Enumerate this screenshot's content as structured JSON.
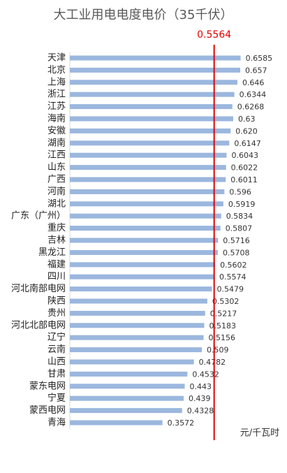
{
  "chart_data": {
    "type": "hbar",
    "title": "大工业用电电度电价（35千伏）",
    "categories": [
      "天津",
      "北京",
      "上海",
      "浙江",
      "江苏",
      "海南",
      "安徽",
      "湖南",
      "江西",
      "山东",
      "广西",
      "河南",
      "湖北",
      "广东（广州）",
      "重庆",
      "吉林",
      "黑龙江",
      "福建",
      "四川",
      "河北南部电网",
      "陕西",
      "贵州",
      "河北北部电网",
      "辽宁",
      "云南",
      "山西",
      "甘肃",
      "蒙东电网",
      "宁夏",
      "蒙西电网",
      "青海"
    ],
    "values": [
      0.6585,
      0.657,
      0.646,
      0.6344,
      0.6268,
      0.63,
      0.62,
      0.6147,
      0.6043,
      0.6022,
      0.6011,
      0.596,
      0.5919,
      0.5834,
      0.5807,
      0.5716,
      0.5708,
      0.5602,
      0.5574,
      0.5479,
      0.5302,
      0.5217,
      0.5183,
      0.5156,
      0.509,
      0.4782,
      0.4532,
      0.443,
      0.439,
      0.4328,
      0.3572
    ],
    "value_labels": [
      "0.6585",
      "0.657",
      "0.646",
      "0.6344",
      "0.6268",
      "0.63",
      "0.620",
      "0.6147",
      "0.6043",
      "0.6022",
      "0.6011",
      "0.596",
      "0.5919",
      "0.5834",
      "0.5807",
      "0.5716",
      "0.5708",
      "0.5602",
      "0.5574",
      "0.5479",
      "0.5302",
      "0.5217",
      "0.5183",
      "0.5156",
      "0.509",
      "0.4782",
      "0.4532",
      "0.443",
      "0.439",
      "0.4328",
      "0.3572"
    ],
    "color": "#9bb7de",
    "xlim": [
      0,
      0.7
    ],
    "reference_line": {
      "value": 0.5564,
      "label": "0.5564",
      "color": "#e00000"
    },
    "unit": "元/千瓦时"
  }
}
